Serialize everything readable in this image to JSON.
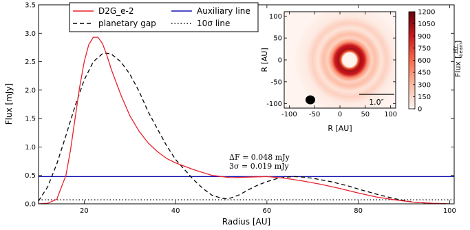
{
  "chart_data": [
    {
      "type": "line",
      "xlabel": "Radius [AU]",
      "ylabel": "Flux [mJy]",
      "xlim": [
        10,
        101
      ],
      "ylim": [
        0,
        3.5
      ],
      "xticks": [
        20,
        40,
        60,
        80,
        100
      ],
      "yticks": [
        0.0,
        0.5,
        1.0,
        1.5,
        2.0,
        2.5,
        3.0,
        3.5
      ],
      "grid": false,
      "legend_position": "top-center",
      "series": [
        {
          "name": "D2G_e-2",
          "color": "#e8212b",
          "style": "solid",
          "x": [
            10,
            12,
            14,
            16,
            17,
            18,
            19,
            20,
            21,
            22,
            23,
            24,
            25,
            26,
            28,
            30,
            32,
            34,
            36,
            38,
            40,
            44,
            48,
            52,
            56,
            60,
            64,
            68,
            72,
            76,
            80,
            84,
            88,
            92,
            96,
            100
          ],
          "y": [
            0.0,
            0.01,
            0.08,
            0.5,
            0.95,
            1.5,
            2.05,
            2.5,
            2.8,
            2.93,
            2.93,
            2.82,
            2.6,
            2.35,
            1.92,
            1.55,
            1.28,
            1.07,
            0.92,
            0.8,
            0.72,
            0.6,
            0.5,
            0.46,
            0.47,
            0.48,
            0.45,
            0.4,
            0.34,
            0.27,
            0.19,
            0.12,
            0.07,
            0.03,
            0.01,
            0.0
          ]
        },
        {
          "name": "planetary gap",
          "color": "#000000",
          "style": "dashed",
          "x": [
            10,
            12,
            14,
            16,
            18,
            20,
            22,
            24,
            25,
            26,
            28,
            30,
            32,
            34,
            36,
            38,
            40,
            42,
            44,
            46,
            48,
            50,
            51,
            52,
            54,
            56,
            58,
            60,
            62,
            64,
            66,
            68,
            70,
            72,
            74,
            76,
            78,
            80,
            84,
            88,
            92,
            96,
            100
          ],
          "y": [
            0.05,
            0.3,
            0.7,
            1.2,
            1.72,
            2.18,
            2.5,
            2.64,
            2.65,
            2.63,
            2.5,
            2.28,
            1.98,
            1.62,
            1.32,
            1.03,
            0.78,
            0.6,
            0.42,
            0.27,
            0.15,
            0.1,
            0.09,
            0.1,
            0.16,
            0.25,
            0.33,
            0.39,
            0.44,
            0.47,
            0.48,
            0.47,
            0.45,
            0.42,
            0.39,
            0.35,
            0.31,
            0.26,
            0.17,
            0.09,
            0.03,
            0.01,
            0.0
          ]
        },
        {
          "name": "Auxiliary line",
          "color": "#1414b4",
          "style": "solid",
          "x": [
            10,
            101
          ],
          "y": [
            0.48,
            0.48
          ]
        },
        {
          "name": "10σ line",
          "color": "#000000",
          "style": "dotted",
          "x": [
            10,
            101
          ],
          "y": [
            0.07,
            0.07
          ]
        }
      ],
      "annotations": [
        "ΔF = 0.048 mJy",
        "3σ = 0.019 mJy"
      ]
    },
    {
      "type": "heatmap",
      "xlabel": "R [AU]",
      "ylabel": "R [AU]",
      "xlim": [
        -110,
        110
      ],
      "ylim": [
        -110,
        110
      ],
      "xticks": [
        -100,
        -50,
        0,
        50,
        100
      ],
      "yticks": [
        -100,
        -50,
        0,
        50,
        100
      ],
      "scale_bar_label": "1.0″",
      "colorbar": {
        "label": "Flux [μJy/beam]",
        "label_prefix": "Flux",
        "label_num": "μJy",
        "label_den": "beam",
        "ticks": [
          0,
          150,
          300,
          450,
          600,
          750,
          900,
          1050,
          1200
        ],
        "cmap": [
          "#fff5f0",
          "#fcbba1",
          "#fb6a4a",
          "#cb181d",
          "#67000d"
        ]
      }
    }
  ]
}
